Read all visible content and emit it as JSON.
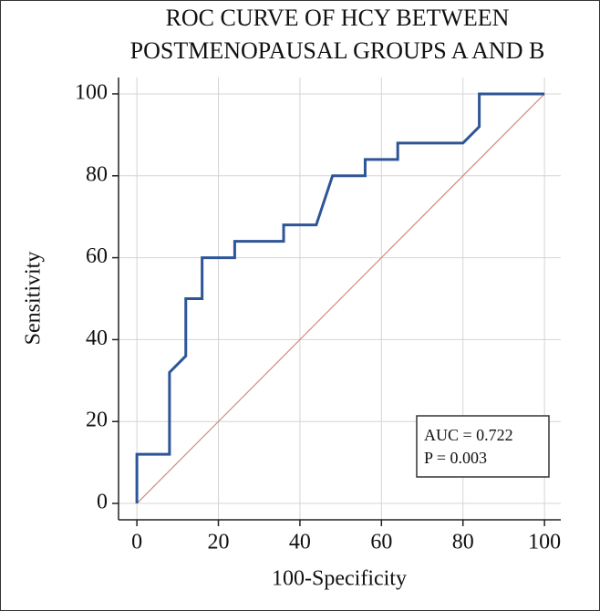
{
  "chart_data": {
    "type": "line",
    "title": [
      "ROC CURVE OF HCY BETWEEN",
      "POSTMENOPAUSAL GROUPS A AND B"
    ],
    "x_label": "100-Specificity",
    "y_label": "Sensitivity",
    "series": [
      {
        "color": "#2e5597",
        "x": [
          0,
          0,
          8,
          8,
          12,
          12,
          16,
          16,
          24,
          24,
          36,
          36,
          44,
          48,
          56,
          56,
          64,
          64,
          80,
          84,
          84,
          100
        ],
        "values": [
          0,
          12,
          12,
          32,
          36,
          50,
          50,
          60,
          60,
          64,
          64,
          68,
          68,
          80,
          80,
          84,
          84,
          88,
          88,
          92,
          100,
          100
        ]
      },
      {
        "color": "#d08a80",
        "x": [
          0,
          100
        ],
        "values": [
          0,
          100
        ]
      }
    ],
    "annotations": [
      "AUC = 0.722",
      "P = 0.003"
    ],
    "xlim": [
      -4.5,
      104
    ],
    "ylim": [
      -4,
      104
    ],
    "xticks": [
      0,
      20,
      40,
      60,
      80,
      100
    ],
    "yticks": [
      0,
      20,
      40,
      60,
      80,
      100
    ],
    "grid": true
  }
}
